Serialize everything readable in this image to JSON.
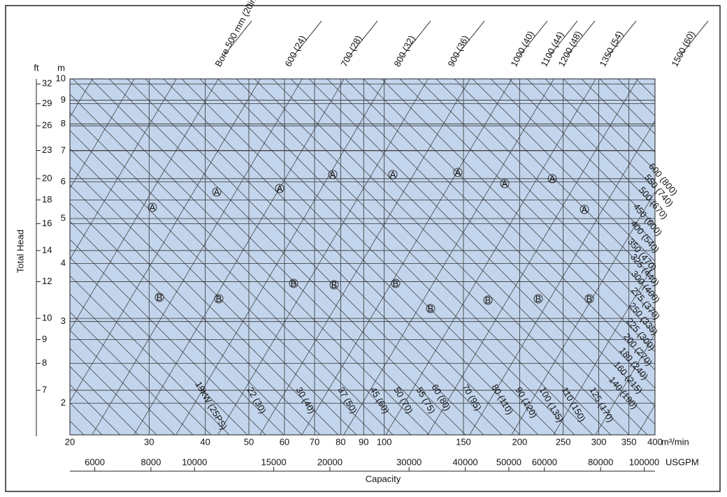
{
  "chart_data": {
    "type": "pump-selection",
    "log_x": true,
    "log_y": true,
    "grid": true,
    "x_label": "Capacity",
    "x_unit": "m³/min",
    "x2_unit": "USGPM",
    "y_label": "Total Head",
    "y_unit": "m",
    "y2_unit": "ft",
    "plot_color": "#c3d5ec",
    "xlim": [
      20,
      400
    ],
    "xticks": [
      20,
      30,
      40,
      50,
      60,
      70,
      80,
      90,
      100,
      150,
      200,
      250,
      300,
      350,
      400
    ],
    "ylim": [
      1.71,
      10
    ],
    "yticks": [
      2,
      3,
      4,
      5,
      6,
      7,
      8,
      9,
      10
    ],
    "y2lim": [
      5.61,
      32.81
    ],
    "y2ticks": [
      7,
      8,
      9,
      10,
      12,
      14,
      16,
      18,
      20,
      23,
      26,
      29,
      32
    ],
    "x2lim": [
      5283,
      105669
    ],
    "x2ticks": [
      6000,
      8000,
      10000,
      15000,
      20000,
      30000,
      40000,
      50000,
      60000,
      80000,
      100000
    ],
    "bore_labels": [
      "Bore 500 mm (20in)",
      "600 (24)",
      "700 (28)",
      "800 (32)",
      "900 (36)",
      "1000 (40)",
      "1100 (44)",
      "1200 (48)",
      "1350 (54)",
      "1500 (60)"
    ],
    "power_labels": [
      "19kW (25PS)",
      "22 (30)",
      "30 (40)",
      "37 (50)",
      "45 (60)",
      "50 (70)",
      "55 (75)",
      "60 (80)",
      "70 (95)",
      "80 (110)",
      "90 (120)",
      "100 (135)",
      "110 (150)",
      "125 (170)",
      "140 (190)",
      "160 (215)",
      "180 (240)",
      "200 (270)",
      "225 (300)",
      "250 (335)",
      "275 (370)",
      "300 (400)",
      "325 (440)",
      "350 (470)",
      "400 (540)",
      "450 (600)",
      "500 (670)",
      "550 (740)",
      "600 (800)"
    ],
    "region_labels": [
      "A",
      "B"
    ]
  }
}
